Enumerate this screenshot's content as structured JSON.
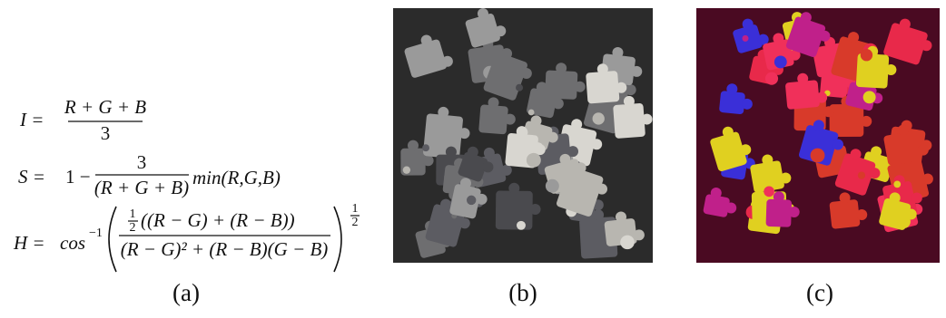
{
  "equations": [
    {
      "lhs": "I =",
      "numerator": "R + G + B",
      "denominator": "3"
    },
    {
      "lhs": "S =",
      "prefix": "1 −",
      "numerator": "3",
      "denominator": "(R + G + B)",
      "suffix": "min(R,G,B)"
    },
    {
      "lhs": "H =",
      "function": "cos",
      "function_exponent": "−1",
      "coefficient": {
        "numerator": "1",
        "denominator": "2"
      },
      "numerator": "((R − G) + (R − B))",
      "denominator": "(R − G)² + (R − B)(G − B)",
      "exponent": {
        "numerator": "1",
        "denominator": "2"
      }
    }
  ],
  "captions": [
    "(a)",
    "(b)",
    "(c)"
  ]
}
